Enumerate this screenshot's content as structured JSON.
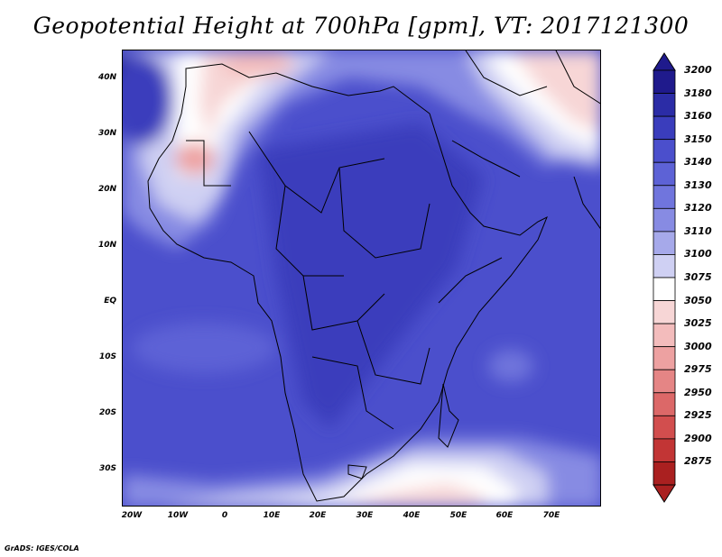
{
  "title": "Geopotential Height at 700hPa [gpm], VT: 2017121300",
  "credit": "GrADS: IGES/COLA",
  "lat_labels": [
    "40N",
    "30N",
    "20N",
    "10N",
    "EQ",
    "10S",
    "20S",
    "30S"
  ],
  "lon_labels": [
    "20W",
    "10W",
    "0",
    "10E",
    "20E",
    "30E",
    "40E",
    "50E",
    "60E",
    "70E"
  ],
  "colorbar": {
    "levels": [
      "3200",
      "3180",
      "3160",
      "3150",
      "3140",
      "3130",
      "3120",
      "3110",
      "3100",
      "3075",
      "3050",
      "3025",
      "3000",
      "2975",
      "2950",
      "2925",
      "2900",
      "2875"
    ],
    "colors": [
      "#1f1a8c",
      "#2b2ca6",
      "#3a3dbc",
      "#4b4fcc",
      "#5d62d6",
      "#7075dd",
      "#878be3",
      "#a6a9ea",
      "#cfd0f3",
      "#ffffff",
      "#f7d6d6",
      "#f3bcbc",
      "#eda1a1",
      "#e58585",
      "#dc6868",
      "#d24e4e",
      "#c23535",
      "#aa2020"
    ]
  }
}
